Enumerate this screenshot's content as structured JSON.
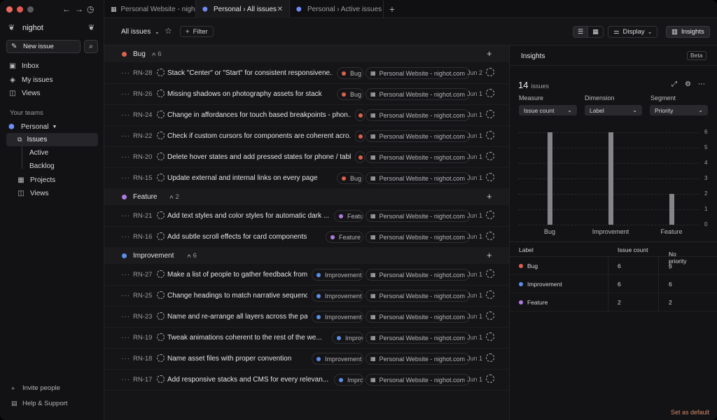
{
  "window": {
    "back": "←",
    "forward": "→",
    "history": "◷"
  },
  "sidebar": {
    "workspace": "nighot",
    "new_issue": "New issue",
    "nav": [
      {
        "label": "Inbox",
        "icon": "inbox-icon",
        "glyph": "▣"
      },
      {
        "label": "My issues",
        "icon": "my-issues-icon",
        "glyph": "◈"
      },
      {
        "label": "Views",
        "icon": "views-icon",
        "glyph": "◫"
      }
    ],
    "teams_label": "Your teams",
    "team": "Personal",
    "issues": "Issues",
    "issues_sub": [
      "Active",
      "Backlog"
    ],
    "projects": "Projects",
    "views": "Views",
    "invite": "Invite people",
    "help": "Help & Support"
  },
  "tabs": [
    {
      "label": "Personal Website - nighot",
      "icon": "grid-icon"
    },
    {
      "label": "Personal › All issues",
      "icon": "cube-icon",
      "active": true
    },
    {
      "label": "Personal › Active issues",
      "icon": "cube-icon"
    }
  ],
  "toolbar": {
    "all_issues": "All issues",
    "filter": "Filter",
    "display": "Display",
    "insights": "Insights"
  },
  "colors": {
    "bug": "#e0604f",
    "feature": "#b07be0",
    "improvement": "#5b8fe8"
  },
  "groups": [
    {
      "name": "Bug",
      "count": "6",
      "color": "#e0604f",
      "issues": [
        {
          "id": "RN-28",
          "title": "Stack \"Center\" or \"Start\" for consistent responsivene...",
          "label": "Bug",
          "project": "Personal Website - nighot.com",
          "date": "Jun 2"
        },
        {
          "id": "RN-26",
          "title": "Missing shadows on photography assets for stack",
          "label": "Bug",
          "project": "Personal Website - nighot.com",
          "date": "Jun 1"
        },
        {
          "id": "RN-24",
          "title": "Change in affordances for touch based breakpoints - phon...",
          "label": "",
          "project": "Personal Website - nighot.com",
          "date": "Jun 1"
        },
        {
          "id": "RN-22",
          "title": "Check if custom cursors for components are coherent acro...",
          "label": "",
          "project": "Personal Website - nighot.com",
          "date": "Jun 1"
        },
        {
          "id": "RN-20",
          "title": "Delete hover states and add pressed states for phone / tablet ...",
          "label": "",
          "project": "Personal Website - nighot.com",
          "date": "Jun 1"
        },
        {
          "id": "RN-15",
          "title": "Update external and internal links on every page",
          "label": "Bug",
          "project": "Personal Website - nighot.com",
          "date": "Jun 1"
        }
      ]
    },
    {
      "name": "Feature",
      "count": "2",
      "color": "#b07be0",
      "issues": [
        {
          "id": "RN-21",
          "title": "Add text styles and color styles for automatic dark ...",
          "label": "Featur",
          "project": "Personal Website - nighot.com",
          "date": "Jun 1"
        },
        {
          "id": "RN-16",
          "title": "Add subtle scroll effects for card components",
          "label": "Feature",
          "project": "Personal Website - nighot.com",
          "date": "Jun 1"
        }
      ]
    },
    {
      "name": "Improvement",
      "count": "6",
      "color": "#5b8fe8",
      "issues": [
        {
          "id": "RN-27",
          "title": "Make a list of people to gather feedback from",
          "label": "Improvement",
          "project": "Personal Website - nighot.com",
          "date": "Jun 1"
        },
        {
          "id": "RN-25",
          "title": "Change headings to match narrative sequenc...",
          "label": "Improvement",
          "project": "Personal Website - nighot.com",
          "date": "Jun 1"
        },
        {
          "id": "RN-23",
          "title": "Name and re-arrange all layers across the pa...",
          "label": "Improvement",
          "project": "Personal Website - nighot.com",
          "date": "Jun 1"
        },
        {
          "id": "RN-19",
          "title": "Tweak animations coherent to the rest of the we...",
          "label": "Improveme",
          "project": "Personal Website - nighot.com",
          "date": "Jun 1"
        },
        {
          "id": "RN-18",
          "title": "Name asset files with proper convention",
          "label": "Improvement",
          "project": "Personal Website - nighot.com",
          "date": "Jun 1"
        },
        {
          "id": "RN-17",
          "title": "Add responsive stacks and CMS for every relevan...",
          "label": "Improver",
          "project": "Personal Website - nighot.com",
          "date": "Jun 1"
        }
      ]
    }
  ],
  "insights": {
    "title": "Insights",
    "beta": "Beta",
    "count": "14",
    "count_unit": "issues",
    "measure_label": "Measure",
    "measure_value": "Issue count",
    "dimension_label": "Dimension",
    "dimension_value": "Label",
    "segment_label": "Segment",
    "segment_value": "Priority",
    "table_headers": [
      "Label",
      "Issue count",
      "No priority"
    ],
    "table_rows": [
      {
        "label": "Bug",
        "count": "6",
        "no_priority": "6",
        "color": "#e0604f"
      },
      {
        "label": "Improvement",
        "count": "6",
        "no_priority": "6",
        "color": "#5b8fe8"
      },
      {
        "label": "Feature",
        "count": "2",
        "no_priority": "2",
        "color": "#b07be0"
      }
    ],
    "set_default": "Set as default"
  },
  "chart_data": {
    "type": "bar",
    "categories": [
      "Bug",
      "Improvement",
      "Feature"
    ],
    "values": [
      6,
      6,
      2
    ],
    "yticks": [
      "0",
      "1",
      "2",
      "3",
      "4",
      "5",
      "6"
    ],
    "ylim": [
      0,
      6
    ],
    "grid": true
  }
}
